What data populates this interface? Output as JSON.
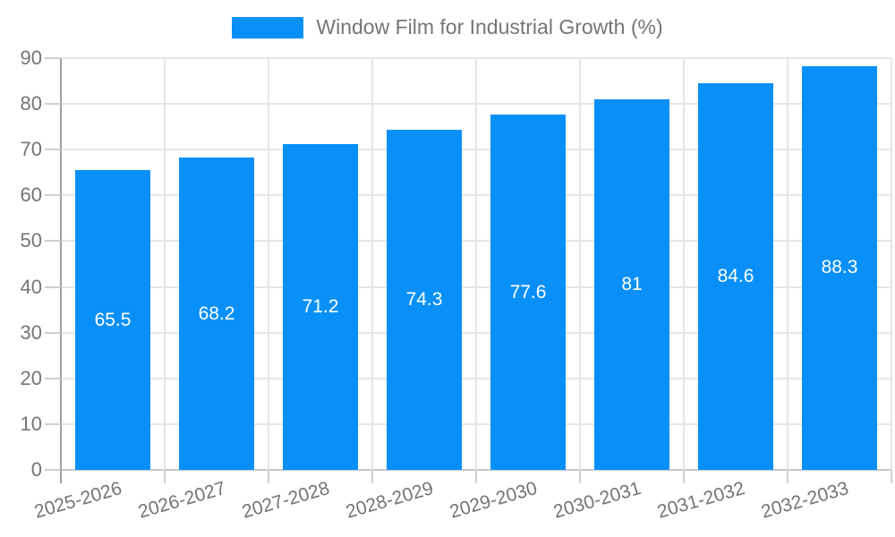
{
  "legend": {
    "label": "Window Film for Industrial Growth (%)",
    "swatch_color": "#0990f8"
  },
  "colors": {
    "background": "#ffffff",
    "axis_text": "#757575",
    "grid_line": "#e6e6e6",
    "baseline": "#c9c9c9",
    "tick": "#cfcfcf",
    "axis_line": "#9e9e9e",
    "bar": "#0990f8",
    "value_text": "#ffffff"
  },
  "chart_data": {
    "type": "bar",
    "title": "Window Film for Industrial Growth (%)",
    "categories": [
      "2025-2026",
      "2026-2027",
      "2027-2028",
      "2028-2029",
      "2029-2030",
      "2030-2031",
      "2031-2032",
      "2032-2033"
    ],
    "values": [
      65.5,
      68.2,
      71.2,
      74.3,
      77.6,
      81,
      84.6,
      88.3
    ],
    "xlabel": "",
    "ylabel": "",
    "ylim": [
      0,
      90
    ],
    "yticks": [
      0,
      10,
      20,
      30,
      40,
      50,
      60,
      70,
      80,
      90
    ],
    "grid": true,
    "legend_position": "top-center",
    "value_labels_inside_bars": true,
    "x_label_rotation_deg": -16
  }
}
